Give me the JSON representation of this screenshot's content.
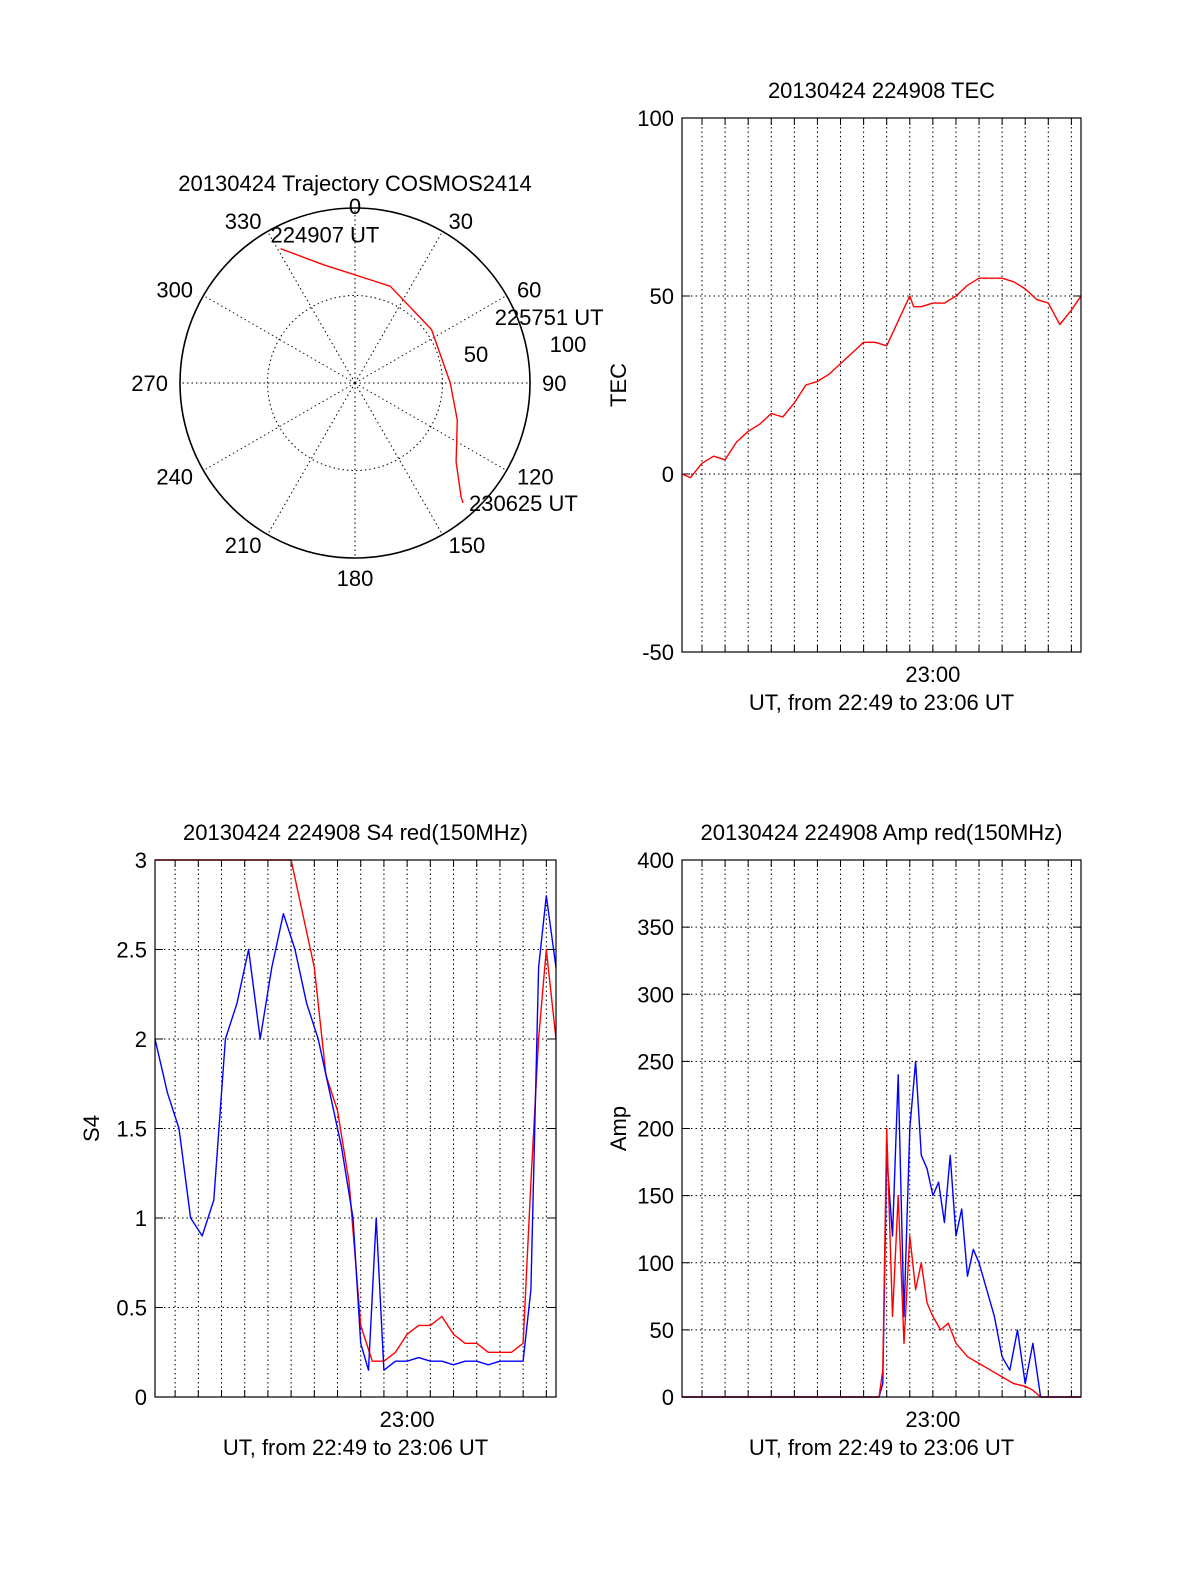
{
  "chart_data": [
    {
      "id": "trajectory",
      "type": "polar",
      "title": "20130424 Trajectory COSMOS2414",
      "angle_labels": [
        "0",
        "30",
        "60",
        "90",
        "120",
        "150",
        "180",
        "210",
        "240",
        "270",
        "300",
        "330"
      ],
      "radial_labels": [
        "50",
        "100"
      ],
      "grid": true,
      "series": [
        {
          "color": "#ff0000",
          "points": [
            {
              "az": 331,
              "el": 11
            },
            {
              "az": 345,
              "el": 27
            },
            {
              "az": 20,
              "el": 37
            },
            {
              "az": 55,
              "el": 42
            },
            {
              "az": 90,
              "el": 41
            },
            {
              "az": 110,
              "el": 34
            },
            {
              "az": 128,
              "el": 24
            },
            {
              "az": 137,
              "el": 10
            },
            {
              "az": 138,
              "el": 7
            }
          ]
        }
      ],
      "annotations": [
        {
          "text": "224907 UT",
          "az": 331,
          "el": 11
        },
        {
          "text": "225751 UT",
          "az": 70,
          "el": 42
        },
        {
          "text": "230625 UT",
          "az": 138,
          "el": 7
        }
      ]
    },
    {
      "id": "tec",
      "type": "line",
      "title": "20130424 224908 TEC",
      "xlabel": "UT, from 22:49 to 23:06 UT",
      "ylabel": "TEC",
      "xlim": [
        "22:49:08",
        "23:06:25"
      ],
      "ylim": [
        -50,
        100
      ],
      "yticks": [
        "-50",
        "0",
        "50",
        "100"
      ],
      "xticks": [
        {
          "t": "23:00",
          "label": "23:00"
        }
      ],
      "grid": true,
      "series": [
        {
          "color": "#ff0000",
          "x": [
            "22:49:08",
            "22:49:30",
            "22:50:00",
            "22:50:30",
            "22:51:00",
            "22:51:30",
            "22:52:00",
            "22:52:30",
            "22:53:00",
            "22:53:30",
            "22:54:00",
            "22:54:30",
            "22:55:00",
            "22:55:30",
            "22:56:00",
            "22:56:30",
            "22:57:00",
            "22:57:30",
            "22:58:00",
            "22:58:30",
            "22:59:00",
            "22:59:10",
            "22:59:30",
            "23:00:00",
            "23:00:30",
            "23:01:00",
            "23:01:30",
            "23:02:00",
            "23:02:30",
            "23:03:00",
            "23:03:30",
            "23:04:00",
            "23:04:30",
            "23:05:00",
            "23:05:30",
            "23:06:00",
            "23:06:25"
          ],
          "y": [
            0,
            -1,
            3,
            5,
            4,
            9,
            12,
            14,
            17,
            16,
            20,
            25,
            26,
            28,
            31,
            34,
            37,
            37,
            36,
            43,
            50,
            47,
            47,
            48,
            48,
            50,
            53,
            55,
            55,
            55,
            54,
            52,
            49,
            48,
            42,
            46,
            50
          ]
        }
      ]
    },
    {
      "id": "s4",
      "type": "line",
      "title": "20130424 224908 S4 red(150MHz)",
      "xlabel": "UT, from 22:49 to 23:06 UT",
      "ylabel": "S4",
      "xlim": [
        "22:49:08",
        "23:06:25"
      ],
      "ylim": [
        0,
        3
      ],
      "yticks": [
        "0",
        "0.5",
        "1",
        "1.5",
        "2",
        "2.5",
        "3"
      ],
      "xticks": [
        {
          "t": "23:00",
          "label": "23:00"
        }
      ],
      "grid": true,
      "series": [
        {
          "color": "#ff0000",
          "x": [
            "22:49:08",
            "22:50:00",
            "22:51:00",
            "22:52:00",
            "22:53:00",
            "22:54:00",
            "22:55:00",
            "22:56:00",
            "22:56:30",
            "22:57:00",
            "22:57:30",
            "22:58:00",
            "22:58:30",
            "22:59:00",
            "22:59:30",
            "23:00:00",
            "23:00:30",
            "23:01:00",
            "23:01:30",
            "23:02:00",
            "23:02:30",
            "23:03:00",
            "23:03:30",
            "23:04:00",
            "23:04:30",
            "23:05:00",
            "23:05:20",
            "23:05:40",
            "23:06:00",
            "23:06:25"
          ],
          "y": [
            3.0,
            3.0,
            3.0,
            3.0,
            3.0,
            3.0,
            3.0,
            2.4,
            1.8,
            1.6,
            1.2,
            0.4,
            0.2,
            0.2,
            0.25,
            0.35,
            0.4,
            0.4,
            0.45,
            0.35,
            0.3,
            0.3,
            0.25,
            0.25,
            0.25,
            0.3,
            1.2,
            2.0,
            2.5,
            2.0
          ]
        },
        {
          "color": "#0000ff",
          "x": [
            "22:49:08",
            "22:49:40",
            "22:50:10",
            "22:50:40",
            "22:51:10",
            "22:51:40",
            "22:52:10",
            "22:52:40",
            "22:53:10",
            "22:53:40",
            "22:54:10",
            "22:54:40",
            "22:55:10",
            "22:55:40",
            "22:56:10",
            "22:56:40",
            "22:57:10",
            "22:57:40",
            "22:58:00",
            "22:58:20",
            "22:58:40",
            "22:59:00",
            "22:59:30",
            "23:00:00",
            "23:00:30",
            "23:01:00",
            "23:01:30",
            "23:02:00",
            "23:02:30",
            "23:03:00",
            "23:03:30",
            "23:04:00",
            "23:04:30",
            "23:05:00",
            "23:05:20",
            "23:05:40",
            "23:06:00",
            "23:06:25"
          ],
          "y": [
            2.0,
            1.7,
            1.5,
            1.0,
            0.9,
            1.1,
            2.0,
            2.2,
            2.5,
            2.0,
            2.4,
            2.7,
            2.5,
            2.2,
            2.0,
            1.7,
            1.4,
            1.0,
            0.3,
            0.15,
            1.0,
            0.15,
            0.2,
            0.2,
            0.22,
            0.2,
            0.2,
            0.18,
            0.2,
            0.2,
            0.18,
            0.2,
            0.2,
            0.2,
            0.6,
            2.4,
            2.8,
            2.4
          ]
        }
      ]
    },
    {
      "id": "amp",
      "type": "line",
      "title": "20130424 224908 Amp red(150MHz)",
      "xlabel": "UT, from 22:49 to 23:06 UT",
      "ylabel": "Amp",
      "xlim": [
        "22:49:08",
        "23:06:25"
      ],
      "ylim": [
        0,
        400
      ],
      "yticks": [
        "0",
        "50",
        "100",
        "150",
        "200",
        "250",
        "300",
        "350",
        "400"
      ],
      "xticks": [
        {
          "t": "23:00",
          "label": "23:00"
        }
      ],
      "grid": true,
      "series": [
        {
          "color": "#0000ff",
          "x": [
            "22:49:08",
            "22:50:00",
            "22:52:00",
            "22:54:00",
            "22:56:00",
            "22:57:40",
            "22:57:50",
            "22:58:00",
            "22:58:15",
            "22:58:30",
            "22:58:45",
            "22:59:00",
            "22:59:15",
            "22:59:30",
            "22:59:45",
            "23:00:00",
            "23:00:15",
            "23:00:30",
            "23:00:45",
            "23:01:00",
            "23:01:15",
            "23:01:30",
            "23:01:45",
            "23:02:00",
            "23:02:20",
            "23:02:40",
            "23:03:00",
            "23:03:20",
            "23:03:40",
            "23:04:00",
            "23:04:20",
            "23:04:40",
            "23:05:00",
            "23:05:30",
            "23:06:00",
            "23:06:25"
          ],
          "y": [
            0,
            0,
            0,
            0,
            0,
            0,
            10,
            180,
            120,
            240,
            60,
            200,
            250,
            180,
            170,
            150,
            160,
            130,
            180,
            120,
            140,
            90,
            110,
            100,
            80,
            60,
            30,
            20,
            50,
            10,
            40,
            0,
            0,
            0,
            0,
            0
          ]
        },
        {
          "color": "#ff0000",
          "x": [
            "22:49:08",
            "22:52:00",
            "22:56:00",
            "22:57:40",
            "22:57:50",
            "22:58:00",
            "22:58:15",
            "22:58:30",
            "22:58:45",
            "22:59:00",
            "22:59:15",
            "22:59:30",
            "22:59:45",
            "23:00:00",
            "23:00:20",
            "23:00:40",
            "23:01:00",
            "23:01:30",
            "23:02:00",
            "23:02:30",
            "23:03:00",
            "23:03:30",
            "23:04:00",
            "23:04:20",
            "23:04:40",
            "23:05:00",
            "23:06:25"
          ],
          "y": [
            0,
            0,
            0,
            0,
            20,
            200,
            60,
            150,
            40,
            120,
            80,
            100,
            70,
            60,
            50,
            55,
            40,
            30,
            25,
            20,
            15,
            10,
            8,
            5,
            0,
            0,
            0
          ]
        }
      ]
    }
  ]
}
